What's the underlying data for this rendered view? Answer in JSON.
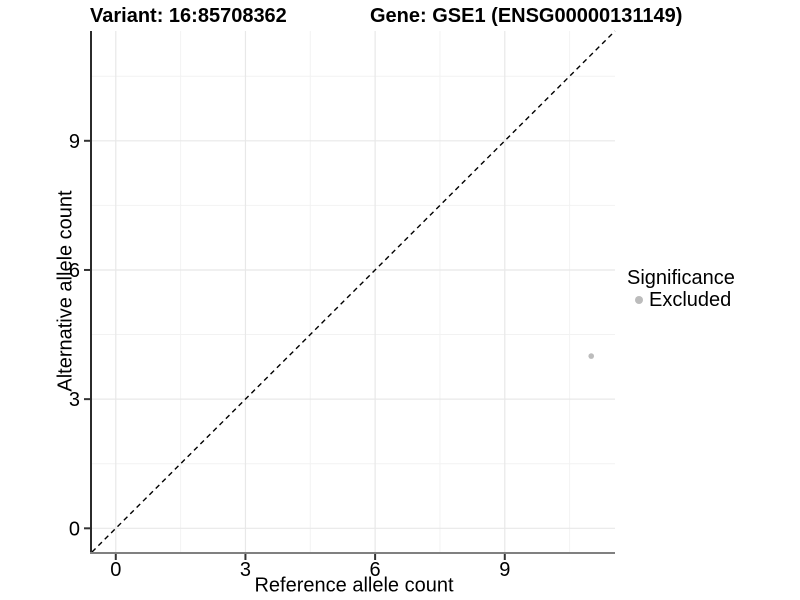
{
  "chart_data": {
    "type": "scatter",
    "titles": [
      "Variant: 16:85708362",
      "Gene: GSE1 (ENSG00000131149)"
    ],
    "xlabel": "Reference allele count",
    "ylabel": "Alternative allele count",
    "xlim": [
      -0.55,
      11.55
    ],
    "ylim": [
      -0.55,
      11.55
    ],
    "xticks": [
      0,
      3,
      6,
      9
    ],
    "yticks": [
      0,
      3,
      6,
      9
    ],
    "minor_ticks_x": [
      1.5,
      4.5,
      7.5,
      10.5
    ],
    "minor_ticks_y": [
      1.5,
      4.5,
      7.5,
      10.5
    ],
    "grid": "major+minor",
    "identity_line": {
      "slope": 1,
      "intercept": 0,
      "style": "dashed",
      "color": "#000000"
    },
    "series": [
      {
        "name": "Excluded",
        "color": "#bcbcbc",
        "point_radius": 2.8,
        "points": [
          {
            "x": 11,
            "y": 4
          }
        ]
      }
    ],
    "legend": {
      "title": "Significance",
      "position": "right",
      "entries": [
        {
          "label": "Excluded",
          "color": "#bcbcbc"
        }
      ]
    },
    "colors": {
      "background": "#ffffff",
      "grid_major": "#e8e8e8",
      "grid_minor": "#f2f2f2",
      "axis_line_x": "#808080",
      "axis_line_y": "#2b2b2b",
      "tick_mark": "#333333",
      "text": "#000000"
    }
  }
}
